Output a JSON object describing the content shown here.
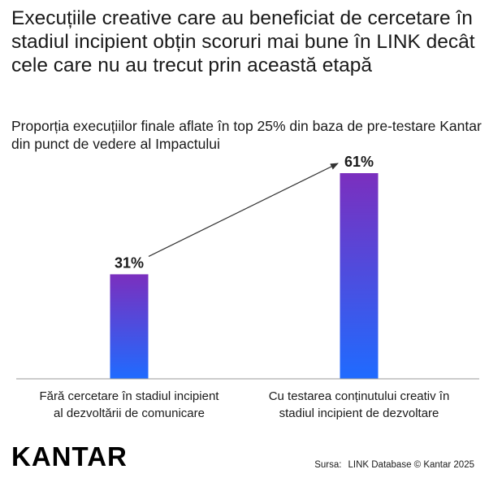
{
  "title": "Execuțiile creative care au beneficiat de cercetare în stadiul incipient obțin scoruri mai bune în LINK decât cele care nu au trecut prin această etapă",
  "subtitle": "Proporția execuțiilor finale aflate în top 25% din baza de pre-testare Kantar din punct de vedere al Impactului",
  "brand": "KANTAR",
  "source_label": "Sursa:",
  "source_text": "LINK Database © Kantar 2025",
  "colors": {
    "bar_top": "#7b2fbe",
    "bar_bottom": "#1f6bff",
    "text": "#1a1a1a",
    "arrow": "#333333"
  },
  "chart_data": {
    "type": "bar",
    "categories": [
      "Fără cercetare în stadiul incipient al dezvoltării de comunicare",
      "Cu testarea conținutului creativ în stadiul incipient de dezvoltare"
    ],
    "category_lines": [
      [
        "Fără cercetare în stadiul incipient",
        "al dezvoltării de comunicare"
      ],
      [
        "Cu testarea conținutului creativ în",
        "stadiul incipient de dezvoltare"
      ]
    ],
    "values": [
      31,
      61
    ],
    "data_labels": [
      "31%",
      "61%"
    ],
    "unit": "%",
    "ylim": [
      0,
      61
    ],
    "grid": false,
    "legend": "none",
    "annotation": "arrow from first bar label to second bar label"
  }
}
